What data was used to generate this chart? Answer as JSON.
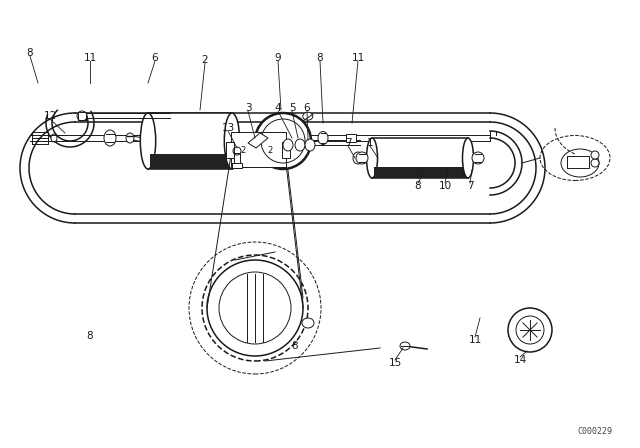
{
  "bg_color": "#ffffff",
  "line_color": "#1a1a1a",
  "watermark": "C000229",
  "fig_width": 6.4,
  "fig_height": 4.48,
  "dpi": 100
}
